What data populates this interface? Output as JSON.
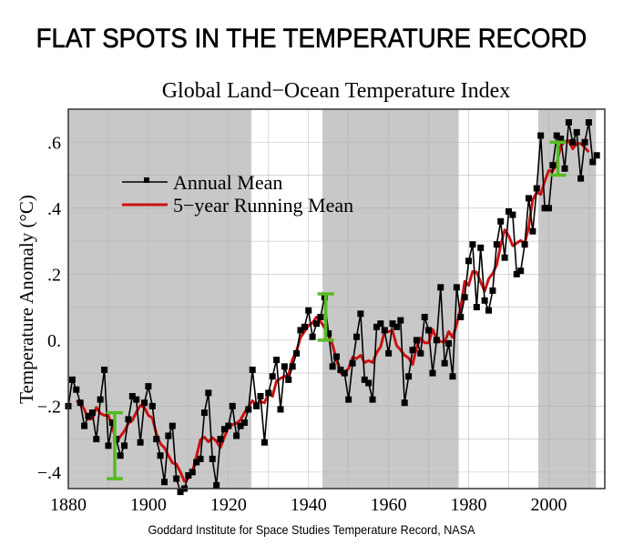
{
  "headline": "FLAT SPOTS IN THE TEMPERATURE RECORD",
  "footer": "Goddard Institute for Space Studies Temperature Record, NASA",
  "colors": {
    "annual": "#000000",
    "running": "#cc1111",
    "shade": "#c8c8c8",
    "flat_marker": "#55bb22",
    "grid": "#a8a8a8"
  },
  "chart_data": {
    "type": "line",
    "title": "Global Land−Ocean Temperature Index",
    "xlabel": "",
    "ylabel": "Temperature Anomaly (°C)",
    "xlim": [
      1880,
      2014
    ],
    "ylim": [
      -0.45,
      0.7
    ],
    "grid": true,
    "x_ticks": [
      1880,
      1900,
      1920,
      1940,
      1960,
      1980,
      2000
    ],
    "x_tick_labels": [
      "1880",
      "1900",
      "1920",
      "1940",
      "1960",
      "1980",
      "2000"
    ],
    "y_ticks": [
      -0.4,
      -0.2,
      0.0,
      0.2,
      0.4,
      0.6
    ],
    "y_tick_labels": [
      "−.4",
      "−.2",
      "0.",
      ".2",
      ".4",
      ".6"
    ],
    "legend": {
      "placement": "upper-left",
      "entries": [
        "Annual Mean",
        "5−year Running Mean"
      ]
    },
    "shaded_periods": [
      {
        "start": 1880,
        "end": 1925.7
      },
      {
        "start": 1943.5,
        "end": 1977.5
      },
      {
        "start": 1997.4,
        "end": 2011.8
      }
    ],
    "flat_markers": [
      {
        "year": 1891.6,
        "low": -0.42,
        "high": -0.22
      },
      {
        "year": 1944.3,
        "low": 0.0,
        "high": 0.14
      },
      {
        "year": 2002.3,
        "low": 0.5,
        "high": 0.6
      }
    ],
    "series": [
      {
        "name": "Annual Mean",
        "x": [
          1880,
          1881,
          1882,
          1883,
          1884,
          1885,
          1886,
          1887,
          1888,
          1889,
          1890,
          1891,
          1892,
          1893,
          1894,
          1895,
          1896,
          1897,
          1898,
          1899,
          1900,
          1901,
          1902,
          1903,
          1904,
          1905,
          1906,
          1907,
          1908,
          1909,
          1910,
          1911,
          1912,
          1913,
          1914,
          1915,
          1916,
          1917,
          1918,
          1919,
          1920,
          1921,
          1922,
          1923,
          1924,
          1925,
          1926,
          1927,
          1928,
          1929,
          1930,
          1931,
          1932,
          1933,
          1934,
          1935,
          1936,
          1937,
          1938,
          1939,
          1940,
          1941,
          1942,
          1943,
          1944,
          1945,
          1946,
          1947,
          1948,
          1949,
          1950,
          1951,
          1952,
          1953,
          1954,
          1955,
          1956,
          1957,
          1958,
          1959,
          1960,
          1961,
          1962,
          1963,
          1964,
          1965,
          1966,
          1967,
          1968,
          1969,
          1970,
          1971,
          1972,
          1973,
          1974,
          1975,
          1976,
          1977,
          1978,
          1979,
          1980,
          1981,
          1982,
          1983,
          1984,
          1985,
          1986,
          1987,
          1988,
          1989,
          1990,
          1991,
          1992,
          1993,
          1994,
          1995,
          1996,
          1997,
          1998,
          1999,
          2000,
          2001,
          2002,
          2003,
          2004,
          2005,
          2006,
          2007,
          2008,
          2009,
          2010,
          2011,
          2012
        ],
        "values": [
          -0.2,
          -0.12,
          -0.15,
          -0.19,
          -0.26,
          -0.23,
          -0.22,
          -0.3,
          -0.18,
          -0.09,
          -0.32,
          -0.25,
          -0.3,
          -0.35,
          -0.32,
          -0.24,
          -0.17,
          -0.18,
          -0.31,
          -0.19,
          -0.14,
          -0.2,
          -0.3,
          -0.35,
          -0.43,
          -0.29,
          -0.26,
          -0.42,
          -0.46,
          -0.45,
          -0.41,
          -0.4,
          -0.37,
          -0.36,
          -0.22,
          -0.16,
          -0.36,
          -0.44,
          -0.3,
          -0.27,
          -0.26,
          -0.2,
          -0.29,
          -0.26,
          -0.25,
          -0.21,
          -0.09,
          -0.2,
          -0.17,
          -0.31,
          -0.16,
          -0.11,
          -0.06,
          -0.21,
          -0.08,
          -0.12,
          -0.08,
          -0.04,
          0.03,
          0.04,
          0.09,
          0.01,
          0.05,
          0.07,
          0.13,
          0.02,
          -0.08,
          -0.05,
          -0.09,
          -0.1,
          -0.18,
          -0.07,
          0.01,
          0.08,
          -0.12,
          -0.13,
          -0.18,
          0.04,
          0.05,
          0.03,
          -0.04,
          0.05,
          0.04,
          0.06,
          -0.19,
          -0.11,
          -0.03,
          0.0,
          -0.04,
          0.07,
          0.03,
          -0.1,
          0.0,
          0.16,
          -0.07,
          -0.01,
          -0.11,
          0.16,
          0.07,
          0.13,
          0.24,
          0.29,
          0.1,
          0.28,
          0.12,
          0.09,
          0.15,
          0.29,
          0.36,
          0.25,
          0.39,
          0.38,
          0.2,
          0.21,
          0.29,
          0.43,
          0.33,
          0.46,
          0.62,
          0.4,
          0.4,
          0.53,
          0.62,
          0.61,
          0.52,
          0.66,
          0.6,
          0.63,
          0.49,
          0.6,
          0.66,
          0.54,
          0.56
        ]
      },
      {
        "name": "5−year Running Mean",
        "method": "centered 5-year average of Annual Mean",
        "x_range": [
          1882,
          2010
        ]
      }
    ]
  }
}
